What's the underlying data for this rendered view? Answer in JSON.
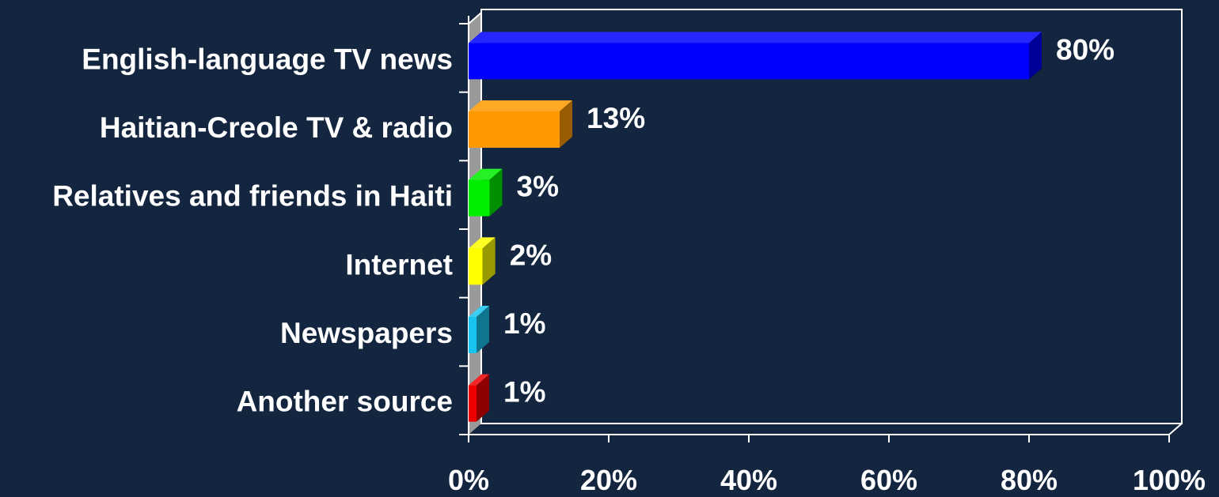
{
  "chart_data": {
    "type": "bar",
    "orientation": "horizontal",
    "style": "3d",
    "categories": [
      "English-language TV news",
      "Haitian-Creole TV & radio",
      "Relatives and friends in Haiti",
      "Internet",
      "Newspapers",
      "Another source"
    ],
    "values": [
      80,
      13,
      3,
      2,
      1,
      1
    ],
    "data_labels": [
      "80%",
      "13%",
      "3%",
      "2%",
      "1%",
      "1%"
    ],
    "bar_colors": [
      "#0000ff",
      "#ff9900",
      "#00ee00",
      "#ffff00",
      "#19c4f0",
      "#ee0000"
    ],
    "xlim": [
      0,
      100
    ],
    "xticks": [
      0,
      20,
      40,
      60,
      80,
      100
    ],
    "xtick_labels": [
      "0%",
      "20%",
      "40%",
      "60%",
      "80%",
      "100%"
    ],
    "title": "",
    "xlabel": "",
    "ylabel": "",
    "grid": false,
    "legend": "none",
    "colors": {
      "background": "#13253f",
      "plot_border": "#ffffff",
      "wall": "#9a9a9a",
      "text": "#ffffff"
    }
  }
}
